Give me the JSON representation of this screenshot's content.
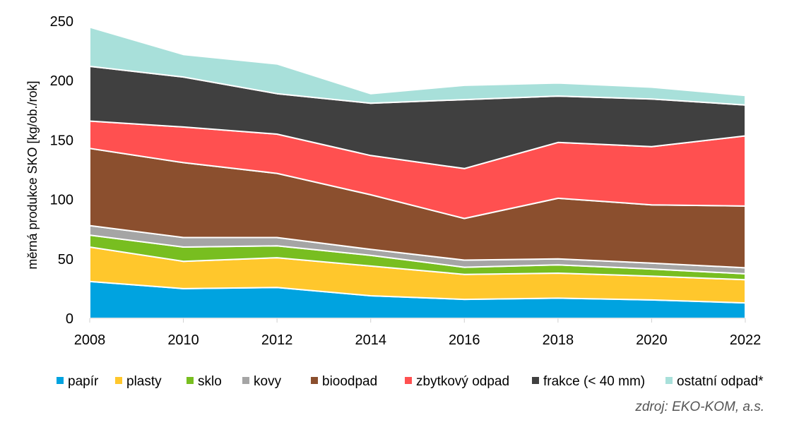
{
  "chart_data": {
    "type": "area",
    "stacked": true,
    "x": [
      2008,
      2010,
      2012,
      2014,
      2016,
      2018,
      2020,
      2022
    ],
    "xlim": [
      2008,
      2022
    ],
    "ylim": [
      0,
      250
    ],
    "yticks": [
      0,
      50,
      100,
      150,
      200,
      250
    ],
    "xticks": [
      2008,
      2010,
      2012,
      2014,
      2016,
      2018,
      2020,
      2022
    ],
    "ylabel": "měrná produkce SKO [kg/ob./rok]",
    "xlabel": "",
    "title": "",
    "grid": false,
    "legend_position": "bottom",
    "source": "zdroj: EKO-KOM, a.s.",
    "series": [
      {
        "name": "papír",
        "color": "#00A3E0",
        "values": [
          31,
          25,
          26,
          19,
          16,
          17,
          15.5,
          13
        ]
      },
      {
        "name": "plasty",
        "color": "#FFC72C",
        "values": [
          29,
          23,
          25,
          25,
          21,
          21,
          20,
          19.5
        ]
      },
      {
        "name": "sklo",
        "color": "#78BE20",
        "values": [
          10,
          12,
          10,
          9,
          6,
          7,
          6,
          5
        ]
      },
      {
        "name": "kovy",
        "color": "#A5A5A5",
        "values": [
          8,
          8,
          7,
          5,
          6,
          5,
          5,
          5
        ]
      },
      {
        "name": "bioodpad",
        "color": "#8B4F2E",
        "values": [
          65,
          63,
          54,
          46,
          35,
          51,
          49,
          52
        ]
      },
      {
        "name": "zbytkový odpad",
        "color": "#FF5050",
        "values": [
          23,
          30,
          33,
          33,
          42,
          47,
          49,
          59
        ]
      },
      {
        "name": "frakce (< 40 mm)",
        "color": "#404040",
        "values": [
          46,
          42,
          34,
          44,
          58,
          39,
          40,
          26
        ]
      },
      {
        "name": "ostatní odpad*",
        "color": "#A8E0DA",
        "values": [
          33,
          19,
          25,
          8,
          12,
          11,
          10,
          8
        ]
      }
    ]
  }
}
